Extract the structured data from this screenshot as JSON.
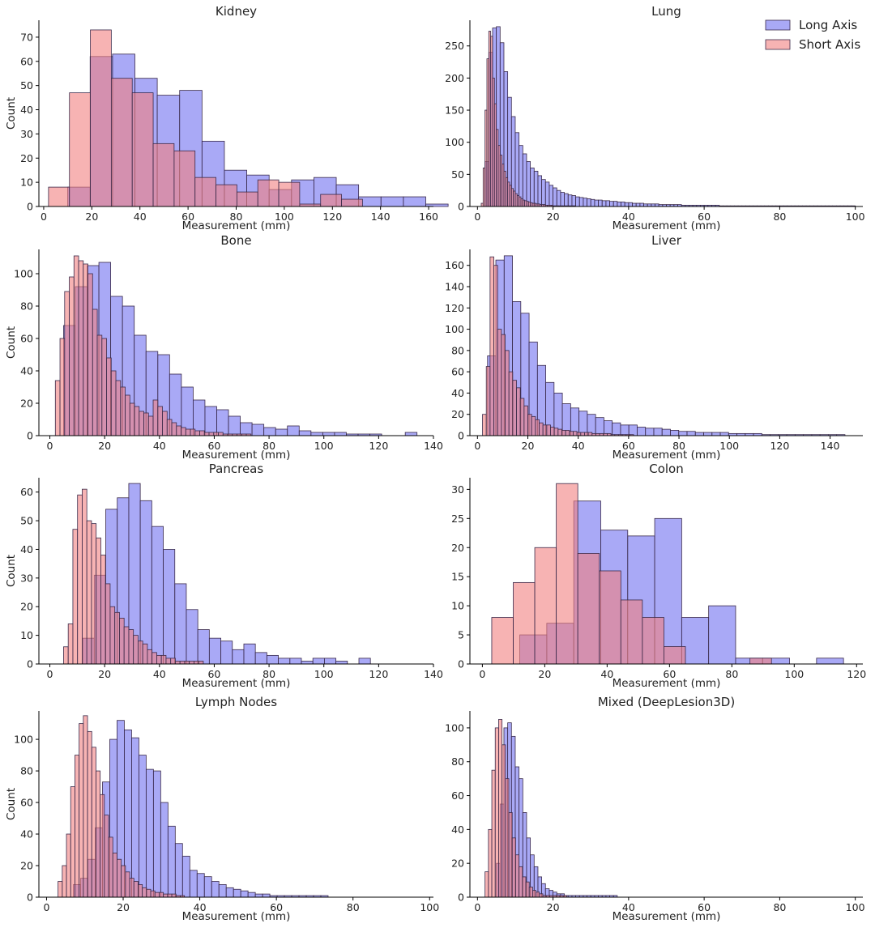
{
  "legend": {
    "long_label": "Long Axis",
    "short_label": "Short Axis",
    "placement": "top-right of Lung panel"
  },
  "colors": {
    "long": "#6f6ff0",
    "short": "#f28080",
    "edge": "#3a2a4a"
  },
  "chart_data": [
    {
      "type": "bar",
      "title": "Kidney",
      "xlabel": "Measurement (mm)",
      "ylabel": "Count",
      "xlim": [
        -2,
        162
      ],
      "ylim": [
        0,
        77
      ],
      "xticks": [
        0,
        20,
        40,
        60,
        80,
        100,
        120,
        140,
        160
      ],
      "yticks": [
        0,
        10,
        20,
        30,
        40,
        50,
        60,
        70
      ],
      "series": [
        {
          "name": "Long Axis",
          "bin_start": 10.0,
          "bin_width": 9.3,
          "values": [
            8,
            62,
            63,
            53,
            46,
            48,
            27,
            15,
            13,
            7,
            11,
            12,
            9,
            4,
            4,
            4,
            1
          ]
        },
        {
          "name": "Short Axis",
          "bin_start": 2.0,
          "bin_width": 8.7,
          "values": [
            8,
            47,
            73,
            53,
            47,
            26,
            23,
            12,
            9,
            6,
            11,
            10,
            1,
            5,
            3
          ]
        }
      ]
    },
    {
      "type": "bar",
      "title": "Lung",
      "xlabel": "Measurement (mm)",
      "ylabel": "",
      "xlim": [
        -2,
        102
      ],
      "ylim": [
        0,
        290
      ],
      "xticks": [
        0,
        20,
        40,
        60,
        80,
        100
      ],
      "yticks": [
        0,
        50,
        100,
        150,
        200,
        250
      ],
      "series": [
        {
          "name": "Long Axis",
          "bin_start": 2.0,
          "bin_width": 1.0,
          "values": [
            70,
            240,
            278,
            280,
            255,
            210,
            170,
            140,
            115,
            95,
            82,
            70,
            60,
            55,
            48,
            42,
            38,
            33,
            29,
            25,
            22,
            20,
            18,
            17,
            15,
            14,
            13,
            12,
            11,
            10,
            10,
            9,
            9,
            8,
            8,
            7,
            7,
            6,
            6,
            5,
            5,
            5,
            4,
            4,
            4,
            4,
            3,
            3,
            3,
            3,
            3,
            3,
            2,
            2,
            2,
            2,
            2,
            2,
            2,
            2,
            2,
            2,
            1,
            1,
            1,
            1,
            1,
            1,
            1,
            1,
            1,
            1,
            1,
            1,
            1,
            1,
            1,
            1,
            1,
            1,
            1,
            1,
            1,
            1,
            1,
            1,
            1,
            1,
            1,
            1,
            1,
            1,
            1,
            1,
            1,
            1,
            1,
            1
          ]
        },
        {
          "name": "Short Axis",
          "bin_start": 1.0,
          "bin_width": 0.5,
          "values": [
            5,
            60,
            150,
            230,
            273,
            265,
            200,
            160,
            120,
            95,
            80,
            66,
            55,
            45,
            38,
            33,
            28,
            24,
            20,
            17,
            15,
            12,
            10,
            9,
            8,
            7,
            6,
            5,
            5,
            4,
            4,
            3,
            3,
            3,
            2,
            2,
            2,
            2,
            1,
            1,
            1,
            1,
            1,
            1,
            1,
            1,
            1,
            1,
            1,
            1
          ]
        }
      ]
    },
    {
      "type": "bar",
      "title": "Bone",
      "xlabel": "Measurement (mm)",
      "ylabel": "Count",
      "xlim": [
        -4,
        140
      ],
      "ylim": [
        0,
        115
      ],
      "xticks": [
        0,
        20,
        40,
        60,
        80,
        100,
        120,
        140
      ],
      "yticks": [
        0,
        20,
        40,
        60,
        80,
        100
      ],
      "series": [
        {
          "name": "Long Axis",
          "bin_start": 5.0,
          "bin_width": 4.3,
          "values": [
            68,
            92,
            105,
            107,
            86,
            80,
            62,
            52,
            50,
            38,
            30,
            22,
            18,
            16,
            12,
            8,
            7,
            5,
            4,
            6,
            3,
            2,
            2,
            2,
            1,
            1,
            1,
            0,
            0,
            2,
            0,
            0,
            0,
            0,
            0,
            0,
            0,
            0,
            0,
            0,
            0,
            0,
            0,
            0,
            0,
            0,
            0,
            0,
            0,
            0,
            0,
            0,
            0,
            0,
            0,
            0,
            0,
            0,
            0,
            0,
            0,
            0,
            0,
            0,
            0,
            0,
            0,
            0,
            0,
            0,
            0,
            0,
            0,
            0,
            0,
            0,
            0,
            0,
            0,
            0,
            0,
            0,
            0,
            0,
            0,
            0,
            0,
            0,
            0,
            0,
            0,
            0,
            0,
            0,
            0,
            0,
            0,
            0,
            0,
            0,
            0,
            0,
            0,
            0,
            0,
            0,
            0,
            0,
            0,
            0,
            0,
            0,
            0,
            0,
            0,
            0,
            0,
            0,
            0,
            0,
            0,
            0,
            0,
            0,
            0,
            0,
            0,
            0,
            0,
            0,
            0,
            0,
            0,
            0,
            0,
            0,
            0,
            0,
            0,
            0,
            0,
            0,
            0,
            0,
            0,
            0
          ]
        },
        {
          "name": "Short Axis",
          "bin_start": 2.0,
          "bin_width": 1.7,
          "values": [
            34,
            60,
            89,
            98,
            111,
            108,
            106,
            100,
            78,
            62,
            60,
            48,
            40,
            34,
            30,
            25,
            20,
            18,
            15,
            14,
            12,
            22,
            18,
            15,
            10,
            8,
            6,
            5,
            4,
            4,
            3,
            3,
            2,
            2,
            2,
            2,
            1,
            1,
            1,
            1,
            1,
            1
          ]
        }
      ]
    },
    {
      "type": "bar",
      "title": "Liver",
      "xlabel": "Measurement (mm)",
      "ylabel": "",
      "xlim": [
        -3,
        153
      ],
      "ylim": [
        0,
        175
      ],
      "xticks": [
        0,
        20,
        40,
        60,
        80,
        100,
        120,
        140
      ],
      "yticks": [
        0,
        20,
        40,
        60,
        80,
        100,
        120,
        140,
        160
      ],
      "series": [
        {
          "name": "Long Axis",
          "bin_start": 4.0,
          "bin_width": 3.3,
          "values": [
            75,
            165,
            169,
            126,
            115,
            88,
            66,
            50,
            40,
            30,
            26,
            23,
            20,
            17,
            14,
            12,
            10,
            10,
            8,
            7,
            7,
            6,
            5,
            4,
            4,
            3,
            3,
            3,
            3,
            2,
            2,
            2,
            2,
            1,
            1,
            1,
            1,
            1,
            1,
            1,
            1,
            1,
            1
          ]
        },
        {
          "name": "Short Axis",
          "bin_start": 2.0,
          "bin_width": 1.5,
          "values": [
            20,
            65,
            168,
            160,
            100,
            95,
            80,
            60,
            52,
            45,
            35,
            28,
            20,
            18,
            15,
            12,
            10,
            10,
            8,
            7,
            6,
            5,
            5,
            4,
            4,
            3,
            3,
            3,
            3,
            2,
            2,
            2,
            2,
            2,
            1,
            1,
            1,
            1,
            1,
            1
          ]
        }
      ]
    },
    {
      "type": "bar",
      "title": "Pancreas",
      "xlabel": "Measurement (mm)",
      "ylabel": "Count",
      "xlim": [
        -4,
        140
      ],
      "ylim": [
        0,
        65
      ],
      "xticks": [
        0,
        20,
        40,
        60,
        80,
        100,
        120,
        140
      ],
      "yticks": [
        0,
        10,
        20,
        30,
        40,
        50,
        60
      ],
      "series": [
        {
          "name": "Long Axis",
          "bin_start": 12.0,
          "bin_width": 4.2,
          "values": [
            9,
            31,
            54,
            58,
            63,
            57,
            48,
            40,
            28,
            19,
            12,
            9,
            8,
            5,
            7,
            4,
            3,
            2,
            2,
            1,
            2,
            2,
            1,
            0,
            2,
            0,
            0,
            0,
            0,
            0,
            0,
            0,
            0,
            0,
            0
          ]
        },
        {
          "name": "Short Axis",
          "bin_start": 5.0,
          "bin_width": 1.7,
          "values": [
            6,
            14,
            47,
            59,
            61,
            50,
            49,
            44,
            38,
            28,
            20,
            18,
            16,
            13,
            12,
            10,
            8,
            7,
            5,
            4,
            3,
            3,
            2,
            2,
            1,
            1,
            1,
            1,
            1,
            1
          ]
        }
      ]
    },
    {
      "type": "bar",
      "title": "Colon",
      "xlabel": "Measurement (mm)",
      "ylabel": "",
      "xlim": [
        -4,
        122
      ],
      "ylim": [
        0,
        32
      ],
      "xticks": [
        0,
        20,
        40,
        60,
        80,
        100,
        120
      ],
      "yticks": [
        0,
        5,
        10,
        15,
        20,
        25,
        30
      ],
      "series": [
        {
          "name": "Long Axis",
          "bin_start": 12.0,
          "bin_width": 8.65,
          "values": [
            5,
            7,
            28,
            23,
            22,
            25,
            8,
            10,
            1,
            1,
            0,
            1
          ]
        },
        {
          "name": "Short Axis",
          "bin_start": 3.0,
          "bin_width": 6.9,
          "values": [
            8,
            14,
            20,
            31,
            19,
            16,
            11,
            8,
            3,
            0,
            0,
            0,
            1
          ]
        }
      ]
    },
    {
      "type": "bar",
      "title": "Lymph Nodes",
      "xlabel": "Measurement (mm)",
      "ylabel": "Count",
      "xlim": [
        -2,
        101
      ],
      "ylim": [
        0,
        118
      ],
      "xticks": [
        0,
        20,
        40,
        60,
        80,
        100
      ],
      "yticks": [
        0,
        20,
        40,
        60,
        80,
        100
      ],
      "series": [
        {
          "name": "Long Axis",
          "bin_start": 7.0,
          "bin_width": 1.9,
          "values": [
            8,
            12,
            24,
            44,
            73,
            100,
            112,
            106,
            101,
            90,
            81,
            80,
            60,
            45,
            34,
            26,
            17,
            15,
            13,
            10,
            8,
            6,
            5,
            4,
            3,
            2,
            2,
            1,
            1,
            1,
            1,
            1,
            1,
            1,
            1
          ]
        },
        {
          "name": "Short Axis",
          "bin_start": 3.0,
          "bin_width": 1.1,
          "values": [
            10,
            20,
            40,
            70,
            90,
            110,
            115,
            105,
            95,
            80,
            65,
            52,
            38,
            28,
            24,
            20,
            16,
            12,
            10,
            8,
            6,
            5,
            4,
            3,
            3,
            2,
            2,
            2,
            1,
            1
          ]
        }
      ]
    },
    {
      "type": "bar",
      "title": "Mixed (DeepLesion3D)",
      "xlabel": "Measurement (mm)",
      "ylabel": "",
      "xlim": [
        -2,
        102
      ],
      "ylim": [
        0,
        110
      ],
      "xticks": [
        0,
        20,
        40,
        60,
        80,
        100
      ],
      "yticks": [
        0,
        20,
        40,
        60,
        80,
        100
      ],
      "series": [
        {
          "name": "Long Axis",
          "bin_start": 5.0,
          "bin_width": 1.0,
          "values": [
            20,
            55,
            100,
            103,
            95,
            77,
            70,
            50,
            35,
            25,
            18,
            12,
            8,
            5,
            4,
            3,
            2,
            2,
            1,
            1,
            1,
            1,
            1,
            1,
            1,
            1,
            1,
            1,
            1,
            1,
            1,
            1
          ]
        },
        {
          "name": "Short Axis",
          "bin_start": 2.0,
          "bin_width": 0.9,
          "values": [
            15,
            40,
            75,
            100,
            105,
            90,
            70,
            50,
            35,
            25,
            18,
            12,
            9,
            6,
            4,
            3,
            2,
            1,
            1,
            1,
            1,
            1,
            1,
            1
          ]
        }
      ]
    }
  ]
}
